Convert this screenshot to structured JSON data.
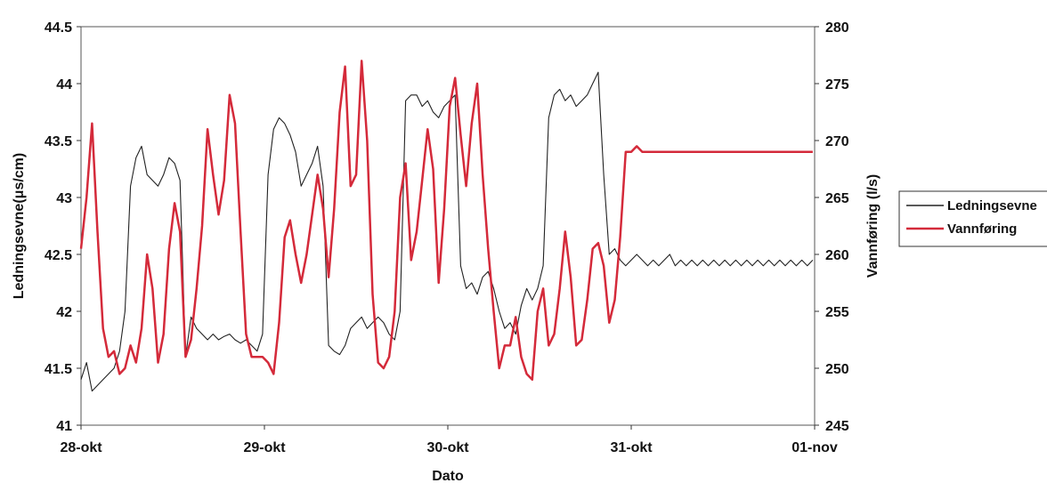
{
  "chart_data": {
    "type": "line",
    "xlabel": "Dato",
    "ylabel_left": "Ledningsevne(μs/cm)",
    "ylabel_right": "Vannføring (l/s)",
    "x_unit": "days",
    "x_ticks": [
      {
        "value": 0,
        "label": "28-okt"
      },
      {
        "value": 1,
        "label": "29-okt"
      },
      {
        "value": 2,
        "label": "30-okt"
      },
      {
        "value": 3,
        "label": "31-okt"
      },
      {
        "value": 4,
        "label": "01-nov"
      }
    ],
    "xlim": [
      0,
      4
    ],
    "ylim_left": [
      41,
      44.5
    ],
    "ylim_right": [
      245,
      280
    ],
    "left_ticks": [
      "41",
      "41.5",
      "42",
      "42.5",
      "43",
      "43.5",
      "44",
      "44.5"
    ],
    "right_ticks": [
      "245",
      "250",
      "255",
      "260",
      "265",
      "270",
      "275",
      "280"
    ],
    "legend_position": "right",
    "series": [
      {
        "name": "Ledningsevne",
        "axis": "left",
        "color": "#222222",
        "x": [
          0.0,
          0.03,
          0.06,
          0.09,
          0.12,
          0.15,
          0.18,
          0.21,
          0.24,
          0.27,
          0.3,
          0.33,
          0.36,
          0.39,
          0.42,
          0.45,
          0.48,
          0.51,
          0.54,
          0.57,
          0.6,
          0.63,
          0.66,
          0.69,
          0.72,
          0.75,
          0.78,
          0.81,
          0.84,
          0.87,
          0.9,
          0.93,
          0.96,
          0.99,
          1.02,
          1.05,
          1.08,
          1.11,
          1.14,
          1.17,
          1.2,
          1.23,
          1.26,
          1.29,
          1.32,
          1.35,
          1.38,
          1.41,
          1.44,
          1.47,
          1.5,
          1.53,
          1.56,
          1.59,
          1.62,
          1.65,
          1.68,
          1.71,
          1.74,
          1.77,
          1.8,
          1.83,
          1.86,
          1.89,
          1.92,
          1.95,
          1.98,
          2.01,
          2.04,
          2.07,
          2.1,
          2.13,
          2.16,
          2.19,
          2.22,
          2.25,
          2.28,
          2.31,
          2.34,
          2.37,
          2.4,
          2.43,
          2.46,
          2.49,
          2.52,
          2.55,
          2.58,
          2.61,
          2.64,
          2.67,
          2.7,
          2.73,
          2.76,
          2.79,
          2.82,
          2.85,
          2.88,
          2.91,
          2.94,
          2.97,
          3.0,
          3.03,
          3.06,
          3.09,
          3.12,
          3.15,
          3.18,
          3.21,
          3.24,
          3.27,
          3.3,
          3.33,
          3.36,
          3.39,
          3.42,
          3.45,
          3.48,
          3.51,
          3.54,
          3.57,
          3.6,
          3.63,
          3.66,
          3.69,
          3.72,
          3.75,
          3.78,
          3.81,
          3.84,
          3.87,
          3.9,
          3.93,
          3.96,
          3.99
        ],
        "values": [
          41.4,
          41.55,
          41.3,
          41.35,
          41.4,
          41.45,
          41.5,
          41.65,
          42.0,
          43.1,
          43.35,
          43.45,
          43.2,
          43.15,
          43.1,
          43.2,
          43.35,
          43.3,
          43.15,
          41.6,
          41.95,
          41.85,
          41.8,
          41.75,
          41.8,
          41.75,
          41.78,
          41.8,
          41.75,
          41.72,
          41.75,
          41.7,
          41.65,
          41.8,
          43.2,
          43.6,
          43.7,
          43.65,
          43.55,
          43.4,
          43.1,
          43.2,
          43.3,
          43.45,
          43.1,
          41.7,
          41.65,
          41.62,
          41.7,
          41.85,
          41.9,
          41.95,
          41.85,
          41.9,
          41.95,
          41.9,
          41.8,
          41.75,
          42.0,
          43.85,
          43.9,
          43.9,
          43.8,
          43.85,
          43.75,
          43.7,
          43.8,
          43.85,
          43.9,
          42.4,
          42.2,
          42.25,
          42.15,
          42.3,
          42.35,
          42.2,
          42.0,
          41.85,
          41.9,
          41.8,
          42.05,
          42.2,
          42.1,
          42.2,
          42.4,
          43.7,
          43.9,
          43.95,
          43.85,
          43.9,
          43.8,
          43.85,
          43.9,
          44.0,
          44.1,
          43.2,
          42.5,
          42.55,
          42.45,
          42.4,
          42.45,
          42.5,
          42.45,
          42.4,
          42.45,
          42.4,
          42.45,
          42.5,
          42.4,
          42.45,
          42.4,
          42.45,
          42.4,
          42.45,
          42.4,
          42.45,
          42.4,
          42.45,
          42.4,
          42.45,
          42.4,
          42.45,
          42.4,
          42.45,
          42.4,
          42.45,
          42.4,
          42.45,
          42.4,
          42.45,
          42.4,
          42.45,
          42.4,
          42.45
        ]
      },
      {
        "name": "Vannføring",
        "axis": "right",
        "color": "#d42a3a",
        "x": [
          0.0,
          0.03,
          0.06,
          0.09,
          0.12,
          0.15,
          0.18,
          0.21,
          0.24,
          0.27,
          0.3,
          0.33,
          0.36,
          0.39,
          0.42,
          0.45,
          0.48,
          0.51,
          0.54,
          0.57,
          0.6,
          0.63,
          0.66,
          0.69,
          0.72,
          0.75,
          0.78,
          0.81,
          0.84,
          0.87,
          0.9,
          0.93,
          0.96,
          0.99,
          1.02,
          1.05,
          1.08,
          1.11,
          1.14,
          1.17,
          1.2,
          1.23,
          1.26,
          1.29,
          1.32,
          1.35,
          1.38,
          1.41,
          1.44,
          1.47,
          1.5,
          1.53,
          1.56,
          1.59,
          1.62,
          1.65,
          1.68,
          1.71,
          1.74,
          1.77,
          1.8,
          1.83,
          1.86,
          1.89,
          1.92,
          1.95,
          1.98,
          2.01,
          2.04,
          2.07,
          2.1,
          2.13,
          2.16,
          2.19,
          2.22,
          2.25,
          2.28,
          2.31,
          2.34,
          2.37,
          2.4,
          2.43,
          2.46,
          2.49,
          2.52,
          2.55,
          2.58,
          2.61,
          2.64,
          2.67,
          2.7,
          2.73,
          2.76,
          2.79,
          2.82,
          2.85,
          2.88,
          2.91,
          2.94,
          2.97,
          3.0,
          3.03,
          3.06,
          3.09,
          3.12,
          3.15,
          3.18,
          3.21,
          3.24,
          3.27,
          3.3,
          3.33,
          3.36,
          3.39,
          3.42,
          3.45,
          3.48,
          3.51,
          3.54,
          3.57,
          3.6,
          3.63,
          3.66,
          3.69,
          3.72,
          3.75,
          3.78,
          3.81,
          3.84,
          3.87,
          3.9,
          3.93,
          3.96,
          3.99
        ],
        "values": [
          260.5,
          265.0,
          271.5,
          262.0,
          253.5,
          251.0,
          251.5,
          249.5,
          250.0,
          252.0,
          250.5,
          253.5,
          260.0,
          257.0,
          250.5,
          253.0,
          260.5,
          264.5,
          262.0,
          251.0,
          252.5,
          257.0,
          262.5,
          271.0,
          267.0,
          263.5,
          266.5,
          274.0,
          271.5,
          262.0,
          253.0,
          251.0,
          251.0,
          251.0,
          250.5,
          249.5,
          254.0,
          261.5,
          263.0,
          260.0,
          257.5,
          260.0,
          263.5,
          267.0,
          264.0,
          258.0,
          264.0,
          272.5,
          276.5,
          266.0,
          267.0,
          277.0,
          270.0,
          256.5,
          250.5,
          250.0,
          251.0,
          255.0,
          265.0,
          268.0,
          259.5,
          262.0,
          266.5,
          271.0,
          267.5,
          257.5,
          264.0,
          273.0,
          275.5,
          270.5,
          266.0,
          271.5,
          275.0,
          267.0,
          260.5,
          255.0,
          250.0,
          252.0,
          252.0,
          254.5,
          251.0,
          249.5,
          249.0,
          255.0,
          257.0,
          252.0,
          253.0,
          257.0,
          262.0,
          258.0,
          252.0,
          252.5,
          256.0,
          260.5,
          261.0,
          259.0,
          254.0,
          256.0,
          261.5,
          269.0,
          269.0,
          269.5,
          269.0,
          269.0,
          269.0,
          269.0,
          269.0,
          269.0,
          269.0,
          269.0,
          269.0,
          269.0,
          269.0,
          269.0,
          269.0,
          269.0,
          269.0,
          269.0,
          269.0,
          269.0,
          269.0,
          269.0,
          269.0,
          269.0,
          269.0,
          269.0,
          269.0,
          269.0,
          269.0,
          269.0,
          269.0,
          269.0,
          269.0,
          269.0
        ]
      }
    ]
  }
}
